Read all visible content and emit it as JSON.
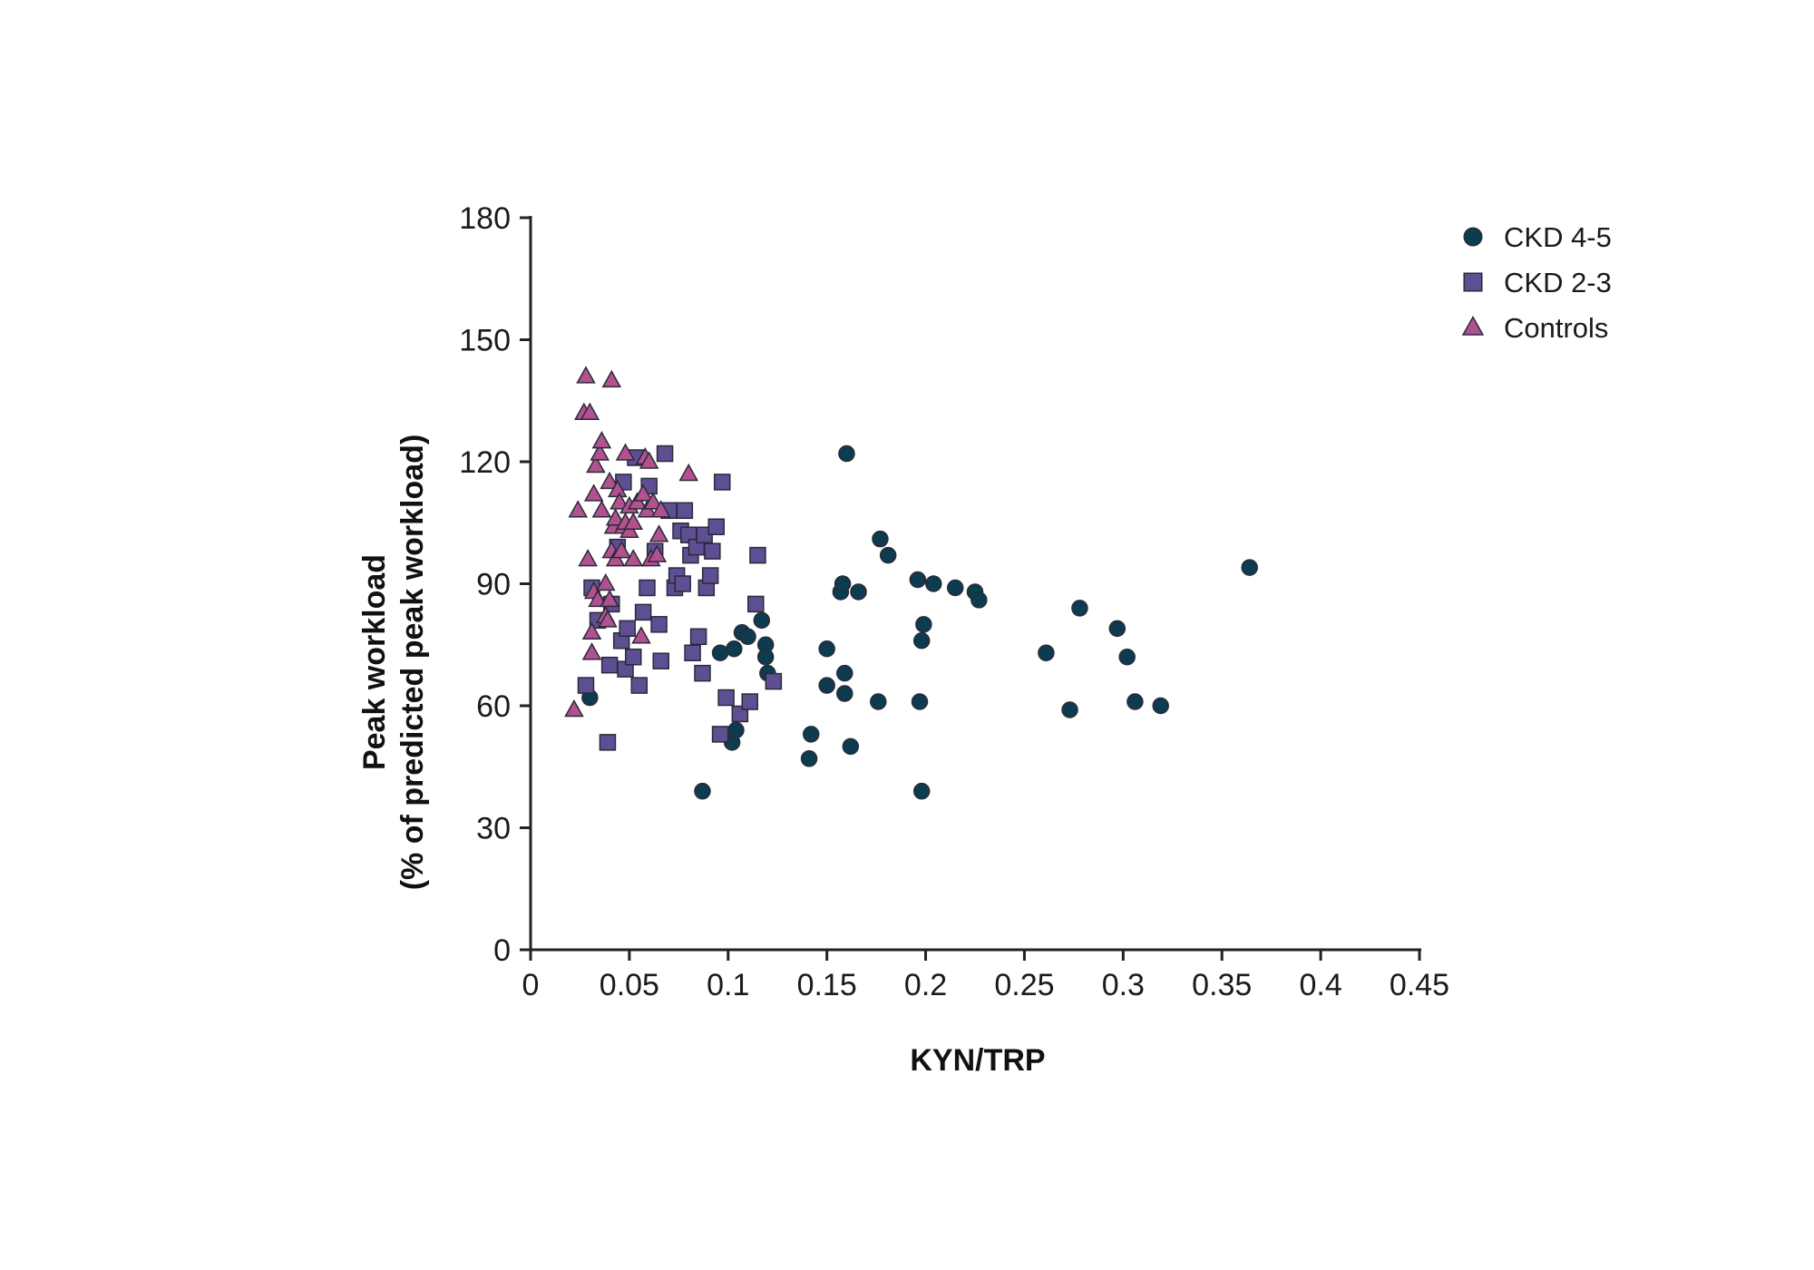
{
  "chart_data": {
    "type": "scatter",
    "title": "",
    "xlabel": "KYN/TRP",
    "ylabel": [
      "Peak workload",
      "(% of predicted peak workload)"
    ],
    "xlim": [
      0,
      0.45
    ],
    "ylim": [
      0,
      180
    ],
    "xticks": [
      0,
      0.05,
      0.1,
      0.15,
      0.2,
      0.25,
      0.3,
      0.35,
      0.4,
      0.45
    ],
    "xtick_labels": [
      "0",
      "0.05",
      "0.1",
      "0.15",
      "0.2",
      "0.25",
      "0.3",
      "0.35",
      "0.4",
      "0.45"
    ],
    "yticks": [
      0,
      30,
      60,
      90,
      120,
      150,
      180
    ],
    "ytick_labels": [
      "0",
      "30",
      "60",
      "90",
      "120",
      "150",
      "180"
    ],
    "grid": false,
    "legend_position": "top-right",
    "series": [
      {
        "name": "CKD 4-5",
        "marker": "circle",
        "color": "#0d3b4f",
        "points": [
          [
            0.03,
            62
          ],
          [
            0.052,
            72
          ],
          [
            0.087,
            39
          ],
          [
            0.096,
            73
          ],
          [
            0.102,
            51
          ],
          [
            0.103,
            74
          ],
          [
            0.104,
            54
          ],
          [
            0.107,
            78
          ],
          [
            0.11,
            77
          ],
          [
            0.117,
            81
          ],
          [
            0.119,
            75
          ],
          [
            0.119,
            72
          ],
          [
            0.12,
            68
          ],
          [
            0.141,
            47
          ],
          [
            0.142,
            53
          ],
          [
            0.15,
            74
          ],
          [
            0.15,
            65
          ],
          [
            0.157,
            88
          ],
          [
            0.158,
            90
          ],
          [
            0.159,
            68
          ],
          [
            0.159,
            63
          ],
          [
            0.16,
            122
          ],
          [
            0.162,
            50
          ],
          [
            0.166,
            88
          ],
          [
            0.176,
            61
          ],
          [
            0.177,
            101
          ],
          [
            0.181,
            97
          ],
          [
            0.196,
            91
          ],
          [
            0.197,
            61
          ],
          [
            0.198,
            39
          ],
          [
            0.198,
            76
          ],
          [
            0.199,
            80
          ],
          [
            0.204,
            90
          ],
          [
            0.215,
            89
          ],
          [
            0.225,
            88
          ],
          [
            0.227,
            86
          ],
          [
            0.261,
            73
          ],
          [
            0.273,
            59
          ],
          [
            0.278,
            84
          ],
          [
            0.297,
            79
          ],
          [
            0.302,
            72
          ],
          [
            0.306,
            61
          ],
          [
            0.319,
            60
          ],
          [
            0.364,
            94
          ]
        ]
      },
      {
        "name": "CKD 2-3",
        "marker": "square",
        "color": "#5e4f93",
        "points": [
          [
            0.028,
            65
          ],
          [
            0.031,
            89
          ],
          [
            0.034,
            81
          ],
          [
            0.039,
            51
          ],
          [
            0.04,
            70
          ],
          [
            0.041,
            85
          ],
          [
            0.044,
            99
          ],
          [
            0.046,
            76
          ],
          [
            0.047,
            115
          ],
          [
            0.048,
            69
          ],
          [
            0.049,
            79
          ],
          [
            0.052,
            72
          ],
          [
            0.053,
            121
          ],
          [
            0.055,
            65
          ],
          [
            0.057,
            83
          ],
          [
            0.059,
            89
          ],
          [
            0.06,
            114
          ],
          [
            0.063,
            98
          ],
          [
            0.065,
            80
          ],
          [
            0.066,
            71
          ],
          [
            0.068,
            122
          ],
          [
            0.07,
            108
          ],
          [
            0.073,
            89
          ],
          [
            0.074,
            92
          ],
          [
            0.076,
            103
          ],
          [
            0.077,
            90
          ],
          [
            0.078,
            108
          ],
          [
            0.08,
            102
          ],
          [
            0.081,
            97
          ],
          [
            0.082,
            73
          ],
          [
            0.084,
            99
          ],
          [
            0.085,
            77
          ],
          [
            0.087,
            68
          ],
          [
            0.088,
            102
          ],
          [
            0.089,
            89
          ],
          [
            0.091,
            92
          ],
          [
            0.092,
            98
          ],
          [
            0.094,
            104
          ],
          [
            0.096,
            53
          ],
          [
            0.097,
            115
          ],
          [
            0.099,
            62
          ],
          [
            0.106,
            58
          ],
          [
            0.111,
            61
          ],
          [
            0.114,
            85
          ],
          [
            0.115,
            97
          ],
          [
            0.123,
            66
          ]
        ]
      },
      {
        "name": "Controls",
        "marker": "triangle",
        "color": "#b2518f",
        "points": [
          [
            0.022,
            59
          ],
          [
            0.024,
            108
          ],
          [
            0.027,
            132
          ],
          [
            0.028,
            141
          ],
          [
            0.029,
            96
          ],
          [
            0.03,
            132
          ],
          [
            0.031,
            73
          ],
          [
            0.031,
            78
          ],
          [
            0.032,
            88
          ],
          [
            0.032,
            112
          ],
          [
            0.033,
            119
          ],
          [
            0.034,
            86
          ],
          [
            0.035,
            122
          ],
          [
            0.036,
            125
          ],
          [
            0.036,
            108
          ],
          [
            0.038,
            90
          ],
          [
            0.038,
            82
          ],
          [
            0.039,
            81
          ],
          [
            0.04,
            115
          ],
          [
            0.04,
            86
          ],
          [
            0.041,
            140
          ],
          [
            0.041,
            98
          ],
          [
            0.042,
            104
          ],
          [
            0.043,
            96
          ],
          [
            0.043,
            106
          ],
          [
            0.044,
            113
          ],
          [
            0.045,
            110
          ],
          [
            0.046,
            98
          ],
          [
            0.047,
            104
          ],
          [
            0.048,
            105
          ],
          [
            0.048,
            122
          ],
          [
            0.05,
            109
          ],
          [
            0.05,
            103
          ],
          [
            0.052,
            105
          ],
          [
            0.052,
            96
          ],
          [
            0.054,
            110
          ],
          [
            0.056,
            77
          ],
          [
            0.057,
            112
          ],
          [
            0.058,
            121
          ],
          [
            0.059,
            108
          ],
          [
            0.06,
            120
          ],
          [
            0.061,
            96
          ],
          [
            0.062,
            110
          ],
          [
            0.064,
            97
          ],
          [
            0.065,
            102
          ],
          [
            0.066,
            108
          ],
          [
            0.08,
            117
          ]
        ]
      }
    ]
  }
}
